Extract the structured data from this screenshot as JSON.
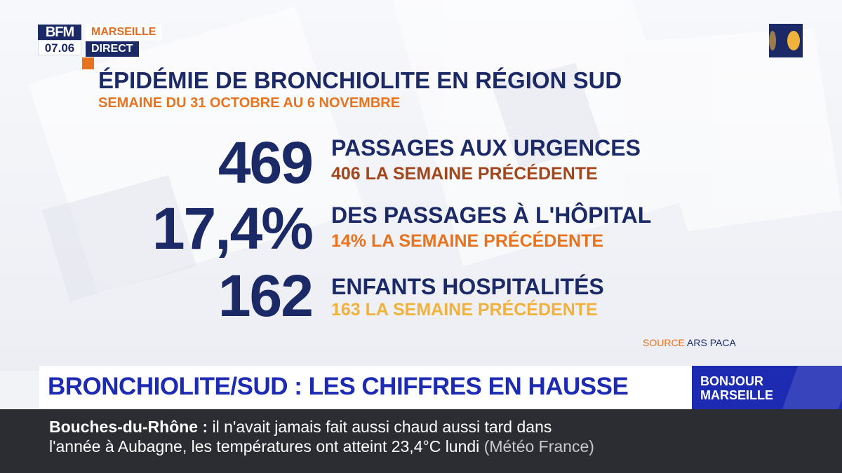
{
  "logo": {
    "brand": "BFM",
    "time": "07.06"
  },
  "channel": {
    "name": "MARSEILLE",
    "live": "DIRECT"
  },
  "title": "ÉPIDÉMIE DE BRONCHIOLITE EN RÉGION SUD",
  "subtitle": "SEMAINE DU 31 OCTOBRE AU 6 NOVEMBRE",
  "stats": [
    {
      "value": "469",
      "label": "PASSAGES AUX URGENCES",
      "sub": "406 LA SEMAINE PRÉCÉDENTE",
      "sub_color": "#a3461b"
    },
    {
      "value": "17,4%",
      "label": "DES PASSAGES À L'HÔPITAL",
      "sub": "14% LA SEMAINE PRÉCÉDENTE",
      "sub_color": "#e8731f"
    },
    {
      "value": "162",
      "label": "ENFANTS HOSPITALITÉS",
      "sub": "163 LA SEMAINE PRÉCÉDENTE",
      "sub_color": "#f0b23a"
    }
  ],
  "source": {
    "label": "SOURCE",
    "value": "ARS PACA"
  },
  "headline": "BRONCHIOLITE/SUD : LES CHIFFRES EN HAUSSE",
  "show": {
    "line1": "BONJOUR",
    "line2": "MARSEILLE"
  },
  "ticker": {
    "key": "Bouches-du-Rhône :",
    "line1": " il n'avait jamais fait aussi chaud aussi tard dans",
    "line2": "l'année à Aubagne, les températures ont atteint 23,4°C lundi",
    "source": "(Météo France)"
  },
  "colors": {
    "navy": "#1b2a66",
    "orange": "#e8731f",
    "headline_blue": "#1d2bb3",
    "ticker_bg": "#2b2d33"
  }
}
